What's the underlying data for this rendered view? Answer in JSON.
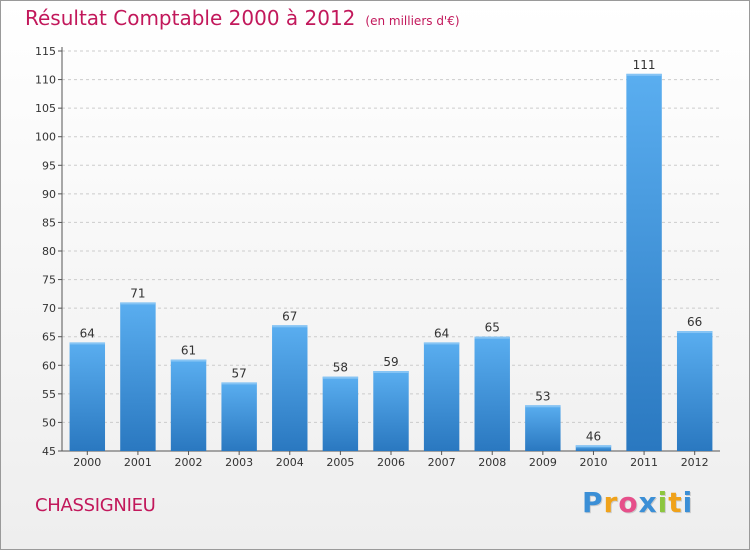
{
  "header": {
    "title": "Résultat Comptable 2000 à 2012",
    "subtitle": "(en milliers d'€)"
  },
  "footer": {
    "commune": "CHASSIGNIEU",
    "logo_letters": [
      "P",
      "r",
      "o",
      "x",
      "i",
      "t",
      "i"
    ],
    "logo_colors": [
      "#3b8fd6",
      "#f0a21a",
      "#e64f8a",
      "#3b8fd6",
      "#8cc63f",
      "#f0a21a",
      "#3b8fd6"
    ]
  },
  "chart_data": {
    "type": "bar",
    "title": "Résultat Comptable 2000 à 2012",
    "subtitle": "(en milliers d'€)",
    "categories": [
      "2000",
      "2001",
      "2002",
      "2003",
      "2004",
      "2005",
      "2006",
      "2007",
      "2008",
      "2009",
      "2010",
      "2011",
      "2012"
    ],
    "values": [
      64,
      71,
      61,
      57,
      67,
      58,
      59,
      64,
      65,
      53,
      46,
      111,
      66
    ],
    "xlabel": "",
    "ylabel": "",
    "ylim": [
      45,
      115
    ],
    "yticks": [
      45,
      50,
      55,
      60,
      65,
      70,
      75,
      80,
      85,
      90,
      95,
      100,
      105,
      110,
      115
    ],
    "grid": "horizontal dashed",
    "bar_color": "#4a9fe0",
    "bar_color_dark": "#2e7cc4"
  }
}
